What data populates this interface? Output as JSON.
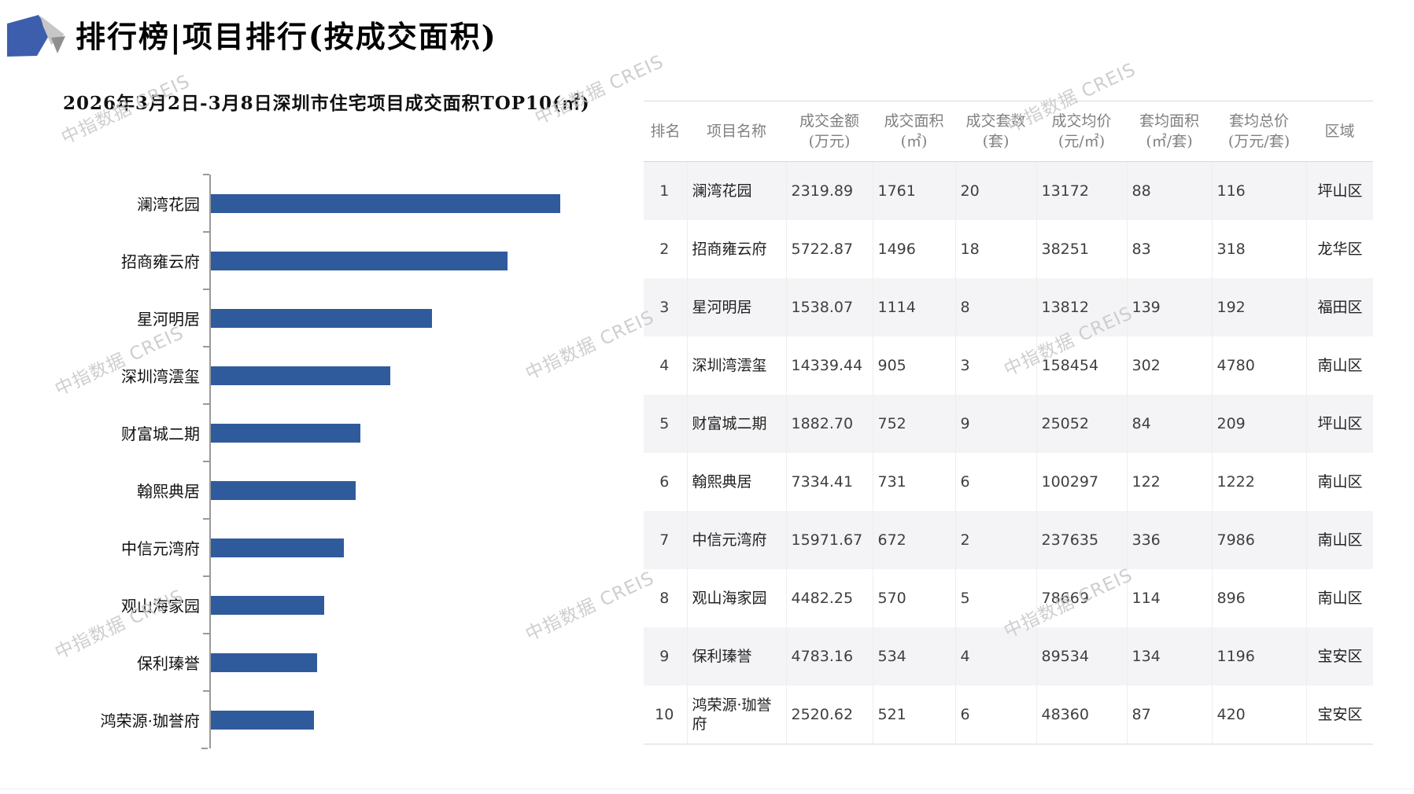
{
  "page": {
    "title": "排行榜|项目排行(按成交面积)",
    "subtitle": "2026年3月2日-3月8日深圳市住宅项目成交面积TOP10(㎡)"
  },
  "watermark": {
    "text": "中指数据 CREIS"
  },
  "colors": {
    "bar": "#2F5B9D",
    "logo_blue": "#3D5EAC",
    "logo_gray_light": "#c7c7c7",
    "logo_gray_dark": "#8f8f8f",
    "stripe": "#f4f4f6",
    "watermark": "#c9c9c9"
  },
  "chart_data": {
    "type": "bar",
    "orientation": "horizontal",
    "title": "2026年3月2日-3月8日深圳市住宅项目成交面积TOP10(㎡)",
    "categories": [
      "澜湾花园",
      "招商雍云府",
      "星河明居",
      "深圳湾澐玺",
      "财富城二期",
      "翰熙典居",
      "中信元湾府",
      "观山海家园",
      "保利瑧誉",
      "鸿荣源·珈誉府"
    ],
    "values": [
      1761,
      1496,
      1114,
      905,
      752,
      731,
      672,
      570,
      534,
      521
    ],
    "xlabel": "",
    "ylabel": "",
    "unit": "㎡",
    "xlim": [
      0,
      1761
    ],
    "grid": false,
    "legend": false
  },
  "table": {
    "columns": [
      {
        "label": "排名",
        "unit": ""
      },
      {
        "label": "项目名称",
        "unit": ""
      },
      {
        "label": "成交金额",
        "unit": "(万元)"
      },
      {
        "label": "成交面积",
        "unit": "(㎡)"
      },
      {
        "label": "成交套数",
        "unit": "(套)"
      },
      {
        "label": "成交均价",
        "unit": "(元/㎡)"
      },
      {
        "label": "套均面积",
        "unit": "(㎡/套)"
      },
      {
        "label": "套均总价",
        "unit": "(万元/套)"
      },
      {
        "label": "区域",
        "unit": ""
      }
    ],
    "rows": [
      [
        "1",
        "澜湾花园",
        "2319.89",
        "1761",
        "20",
        "13172",
        "88",
        "116",
        "坪山区"
      ],
      [
        "2",
        "招商雍云府",
        "5722.87",
        "1496",
        "18",
        "38251",
        "83",
        "318",
        "龙华区"
      ],
      [
        "3",
        "星河明居",
        "1538.07",
        "1114",
        "8",
        "13812",
        "139",
        "192",
        "福田区"
      ],
      [
        "4",
        "深圳湾澐玺",
        "14339.44",
        "905",
        "3",
        "158454",
        "302",
        "4780",
        "南山区"
      ],
      [
        "5",
        "财富城二期",
        "1882.70",
        "752",
        "9",
        "25052",
        "84",
        "209",
        "坪山区"
      ],
      [
        "6",
        "翰熙典居",
        "7334.41",
        "731",
        "6",
        "100297",
        "122",
        "1222",
        "南山区"
      ],
      [
        "7",
        "中信元湾府",
        "15971.67",
        "672",
        "2",
        "237635",
        "336",
        "7986",
        "南山区"
      ],
      [
        "8",
        "观山海家园",
        "4482.25",
        "570",
        "5",
        "78669",
        "114",
        "896",
        "南山区"
      ],
      [
        "9",
        "保利瑧誉",
        "4783.16",
        "534",
        "4",
        "89534",
        "134",
        "1196",
        "宝安区"
      ],
      [
        "10",
        "鸿荣源·珈誉府",
        "2520.62",
        "521",
        "6",
        "48360",
        "87",
        "420",
        "宝安区"
      ]
    ]
  }
}
